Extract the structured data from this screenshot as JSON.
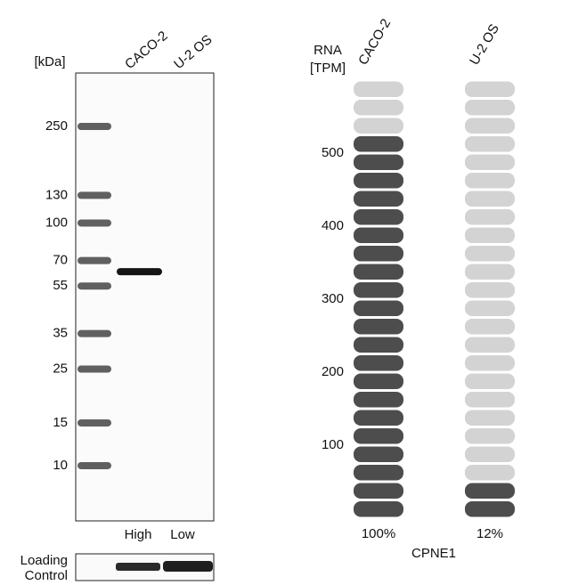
{
  "western_blot": {
    "unit_label": "[kDa]",
    "lanes": [
      "CACO-2",
      "U-2 OS"
    ],
    "markers": [
      250,
      130,
      100,
      70,
      55,
      35,
      25,
      15,
      10
    ],
    "band_kda": 63,
    "expression": [
      "High",
      "Low"
    ],
    "loading_control": [
      "Loading",
      "Control"
    ]
  },
  "rna": {
    "axis_label": [
      "RNA",
      "[TPM]"
    ],
    "samples": [
      "CACO-2",
      "U-2 OS"
    ],
    "values": [
      525,
      63
    ],
    "percent": [
      100,
      12
    ],
    "percent_labels": [
      "100%",
      "12%"
    ],
    "ylim": [
      0,
      600
    ],
    "yticks": [
      100,
      200,
      300,
      400,
      500
    ],
    "gene": "CPNE1",
    "dark_color": "#4d4d4d",
    "light_color": "#d3d3d3"
  }
}
